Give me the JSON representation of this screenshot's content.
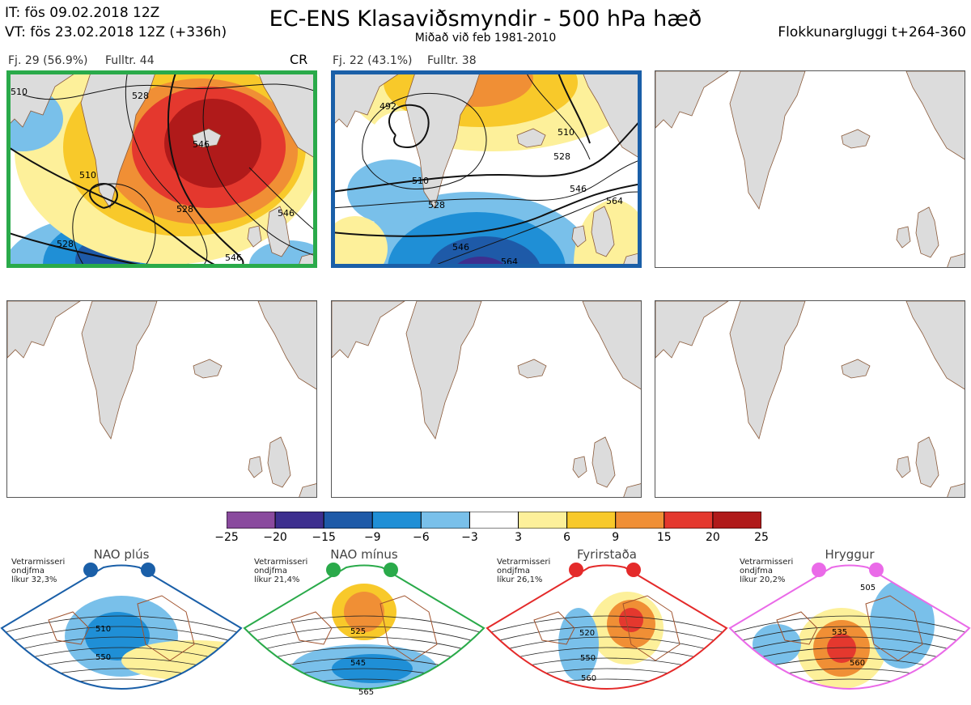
{
  "header": {
    "it_line": "IT: fös 09.02.2018 12Z",
    "vt_line": "VT: fös 23.02.2018 12Z  (+336h)",
    "title": "EC-ENS Klasaviðsmyndir - 500 hPa hæð",
    "subtitle": "Miðað við feb 1981-2010",
    "window": "Flokkunargluggi t+264-360"
  },
  "panels": [
    {
      "label": "Fj. 29 (56.9%)",
      "rep": "Fulltr. 44",
      "tag": "CR",
      "frame_color": "#2aaa4a",
      "contours": [
        "510",
        "528",
        "546",
        "510",
        "528",
        "528",
        "546",
        "546"
      ]
    },
    {
      "label": "Fj. 22 (43.1%)",
      "rep": "Fulltr. 38",
      "tag": "",
      "frame_color": "#1a5fa8",
      "contours": [
        "492",
        "510",
        "528",
        "546",
        "564",
        "510",
        "528",
        "546",
        "564"
      ]
    }
  ],
  "chart_data": {
    "type": "heatmap",
    "title": "EC-ENS Klasaviðsmyndir - 500 hPa hæð",
    "colorbar": {
      "ticks": [
        "−25",
        "−20",
        "−15",
        "−9",
        "−6",
        "−3",
        "3",
        "6",
        "9",
        "15",
        "20",
        "25"
      ],
      "colors": [
        "#8a4a9e",
        "#3d2f8f",
        "#1e5aa8",
        "#1f8fd6",
        "#79c0ea",
        "#ffffff",
        "#fdf09a",
        "#f8c92a",
        "#f08f35",
        "#e4382e",
        "#b01a1a"
      ]
    },
    "clusters": [
      {
        "count": 29,
        "percent": 56.9,
        "representative": 44,
        "tag": "CR"
      },
      {
        "count": 22,
        "percent": 43.1,
        "representative": 38
      }
    ]
  },
  "regimes": [
    {
      "name": "NAO plús",
      "season": "Vetrarmisseri",
      "measure": "ondjfma",
      "prob": "líkur 32,3%",
      "color": "#1a5fa8",
      "labels": [
        "510",
        "550"
      ]
    },
    {
      "name": "NAO mínus",
      "season": "Vetrarmisseri",
      "measure": "ondjfma",
      "prob": "líkur 21,4%",
      "color": "#2aaa4a",
      "labels": [
        "525",
        "545",
        "565"
      ]
    },
    {
      "name": "Fyrirstaða",
      "season": "Vetrarmisseri",
      "measure": "ondjfma",
      "prob": "líkur 26,1%",
      "color": "#e42a2a",
      "labels": [
        "520",
        "550",
        "560"
      ]
    },
    {
      "name": "Hryggur",
      "season": "Vetrarmisseri",
      "measure": "ondjfma",
      "prob": "líkur 20,2%",
      "color": "#ea6ae8",
      "labels": [
        "505",
        "535",
        "560"
      ]
    }
  ]
}
